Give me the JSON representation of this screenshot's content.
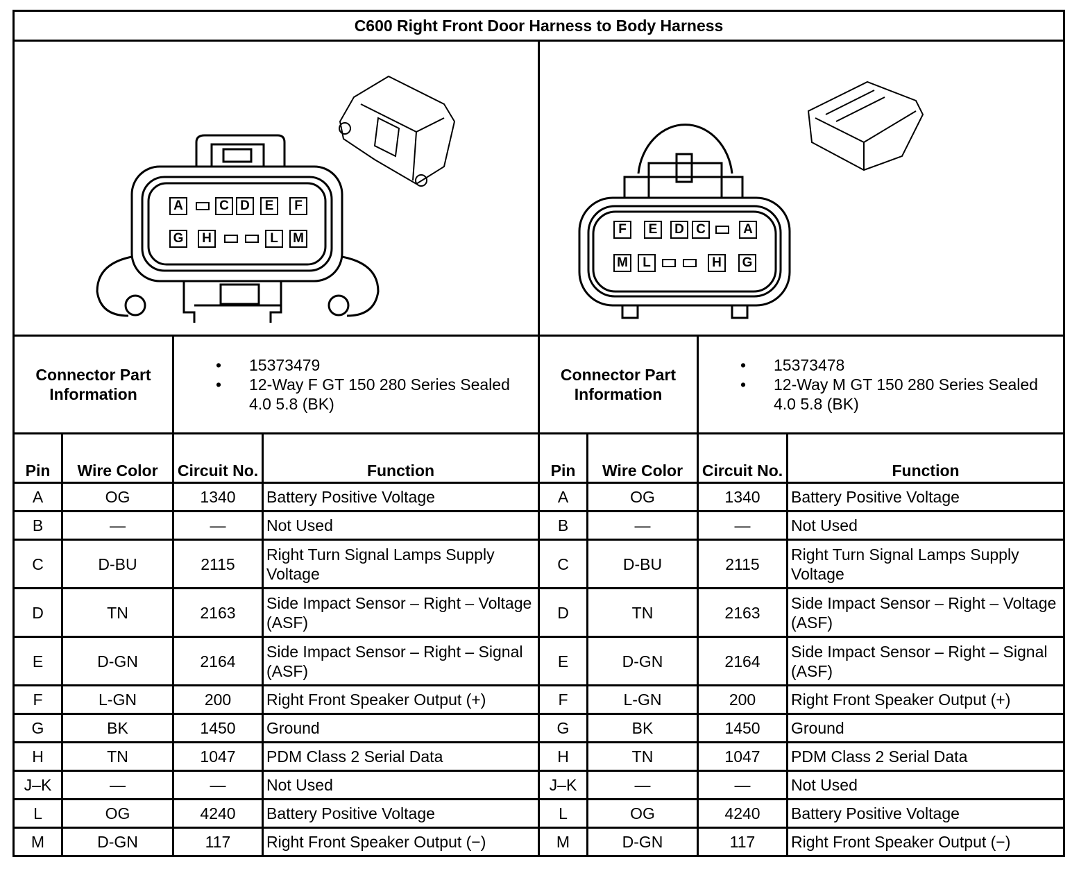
{
  "title": "C600 Right Front Door Harness to Body Harness",
  "connectors": [
    {
      "part_label": "Connector Part Information",
      "part_info": [
        "15373479",
        "12-Way F GT 150 280 Series Sealed 4.0 5.8 (BK)"
      ],
      "face_rows": [
        [
          "A",
          "",
          "C",
          "D",
          "E",
          "F"
        ],
        [
          "G",
          "H",
          "",
          "",
          "L",
          "M"
        ]
      ]
    },
    {
      "part_label": "Connector Part Information",
      "part_info": [
        "15373478",
        "12-Way M GT 150 280 Series Sealed 4.0 5.8 (BK)"
      ],
      "face_rows": [
        [
          "F",
          "E",
          "D",
          "C",
          "",
          "A"
        ],
        [
          "M",
          "L",
          "",
          "",
          "H",
          "G"
        ]
      ]
    }
  ],
  "headers": {
    "pin": "Pin",
    "wire_color": "Wire Color",
    "circuit": "Circuit No.",
    "function": "Function"
  },
  "rows": [
    {
      "pin": "A",
      "color": "OG",
      "circuit": "1340",
      "function": "Battery Positive Voltage"
    },
    {
      "pin": "B",
      "color": "—",
      "circuit": "—",
      "function": "Not Used"
    },
    {
      "pin": "C",
      "color": "D-BU",
      "circuit": "2115",
      "function": "Right Turn Signal Lamps Supply Voltage"
    },
    {
      "pin": "D",
      "color": "TN",
      "circuit": "2163",
      "function": "Side Impact Sensor – Right – Voltage (ASF)"
    },
    {
      "pin": "E",
      "color": "D-GN",
      "circuit": "2164",
      "function": "Side Impact Sensor – Right – Signal (ASF)"
    },
    {
      "pin": "F",
      "color": "L-GN",
      "circuit": "200",
      "function": "Right Front Speaker Output (+)"
    },
    {
      "pin": "G",
      "color": "BK",
      "circuit": "1450",
      "function": "Ground"
    },
    {
      "pin": "H",
      "color": "TN",
      "circuit": "1047",
      "function": "PDM Class 2 Serial Data"
    },
    {
      "pin": "J–K",
      "color": "—",
      "circuit": "—",
      "function": "Not Used"
    },
    {
      "pin": "L",
      "color": "OG",
      "circuit": "4240",
      "function": "Battery Positive Voltage"
    },
    {
      "pin": "M",
      "color": "D-GN",
      "circuit": "117",
      "function": "Right Front Speaker Output (−)"
    }
  ]
}
